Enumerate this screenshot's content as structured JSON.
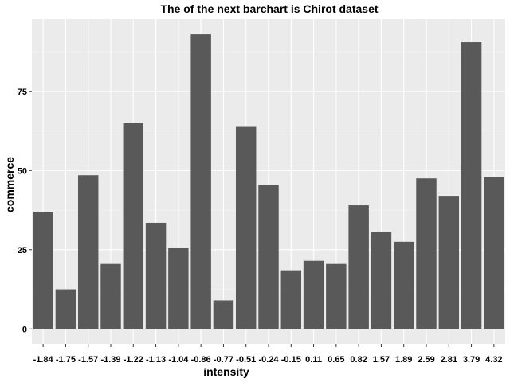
{
  "chart_data": {
    "type": "bar",
    "title": "The of the next barchart is Chirot dataset",
    "xlabel": "intensity",
    "ylabel": "commerce",
    "categories": [
      "-1.84",
      "-1.75",
      "-1.57",
      "-1.39",
      "-1.22",
      "-1.13",
      "-1.04",
      "-0.86",
      "-0.77",
      "-0.51",
      "-0.24",
      "-0.15",
      "0.11",
      "0.65",
      "0.82",
      "1.57",
      "1.89",
      "2.59",
      "2.81",
      "3.79",
      "4.32"
    ],
    "values": [
      37,
      12.5,
      48.5,
      20.5,
      65,
      33.5,
      25.5,
      93,
      9,
      64,
      45.5,
      18.5,
      21.5,
      20.5,
      39,
      30.5,
      27.5,
      47.5,
      42,
      90.5,
      48
    ],
    "yticks": [
      0,
      25,
      50,
      75
    ],
    "ylim": [
      -4.7,
      97.8
    ],
    "grid": true,
    "colors": {
      "panel": "#ebebeb",
      "bar": "#595959",
      "grid_major": "#ffffff",
      "grid_minor": "#f5f5f5"
    }
  }
}
